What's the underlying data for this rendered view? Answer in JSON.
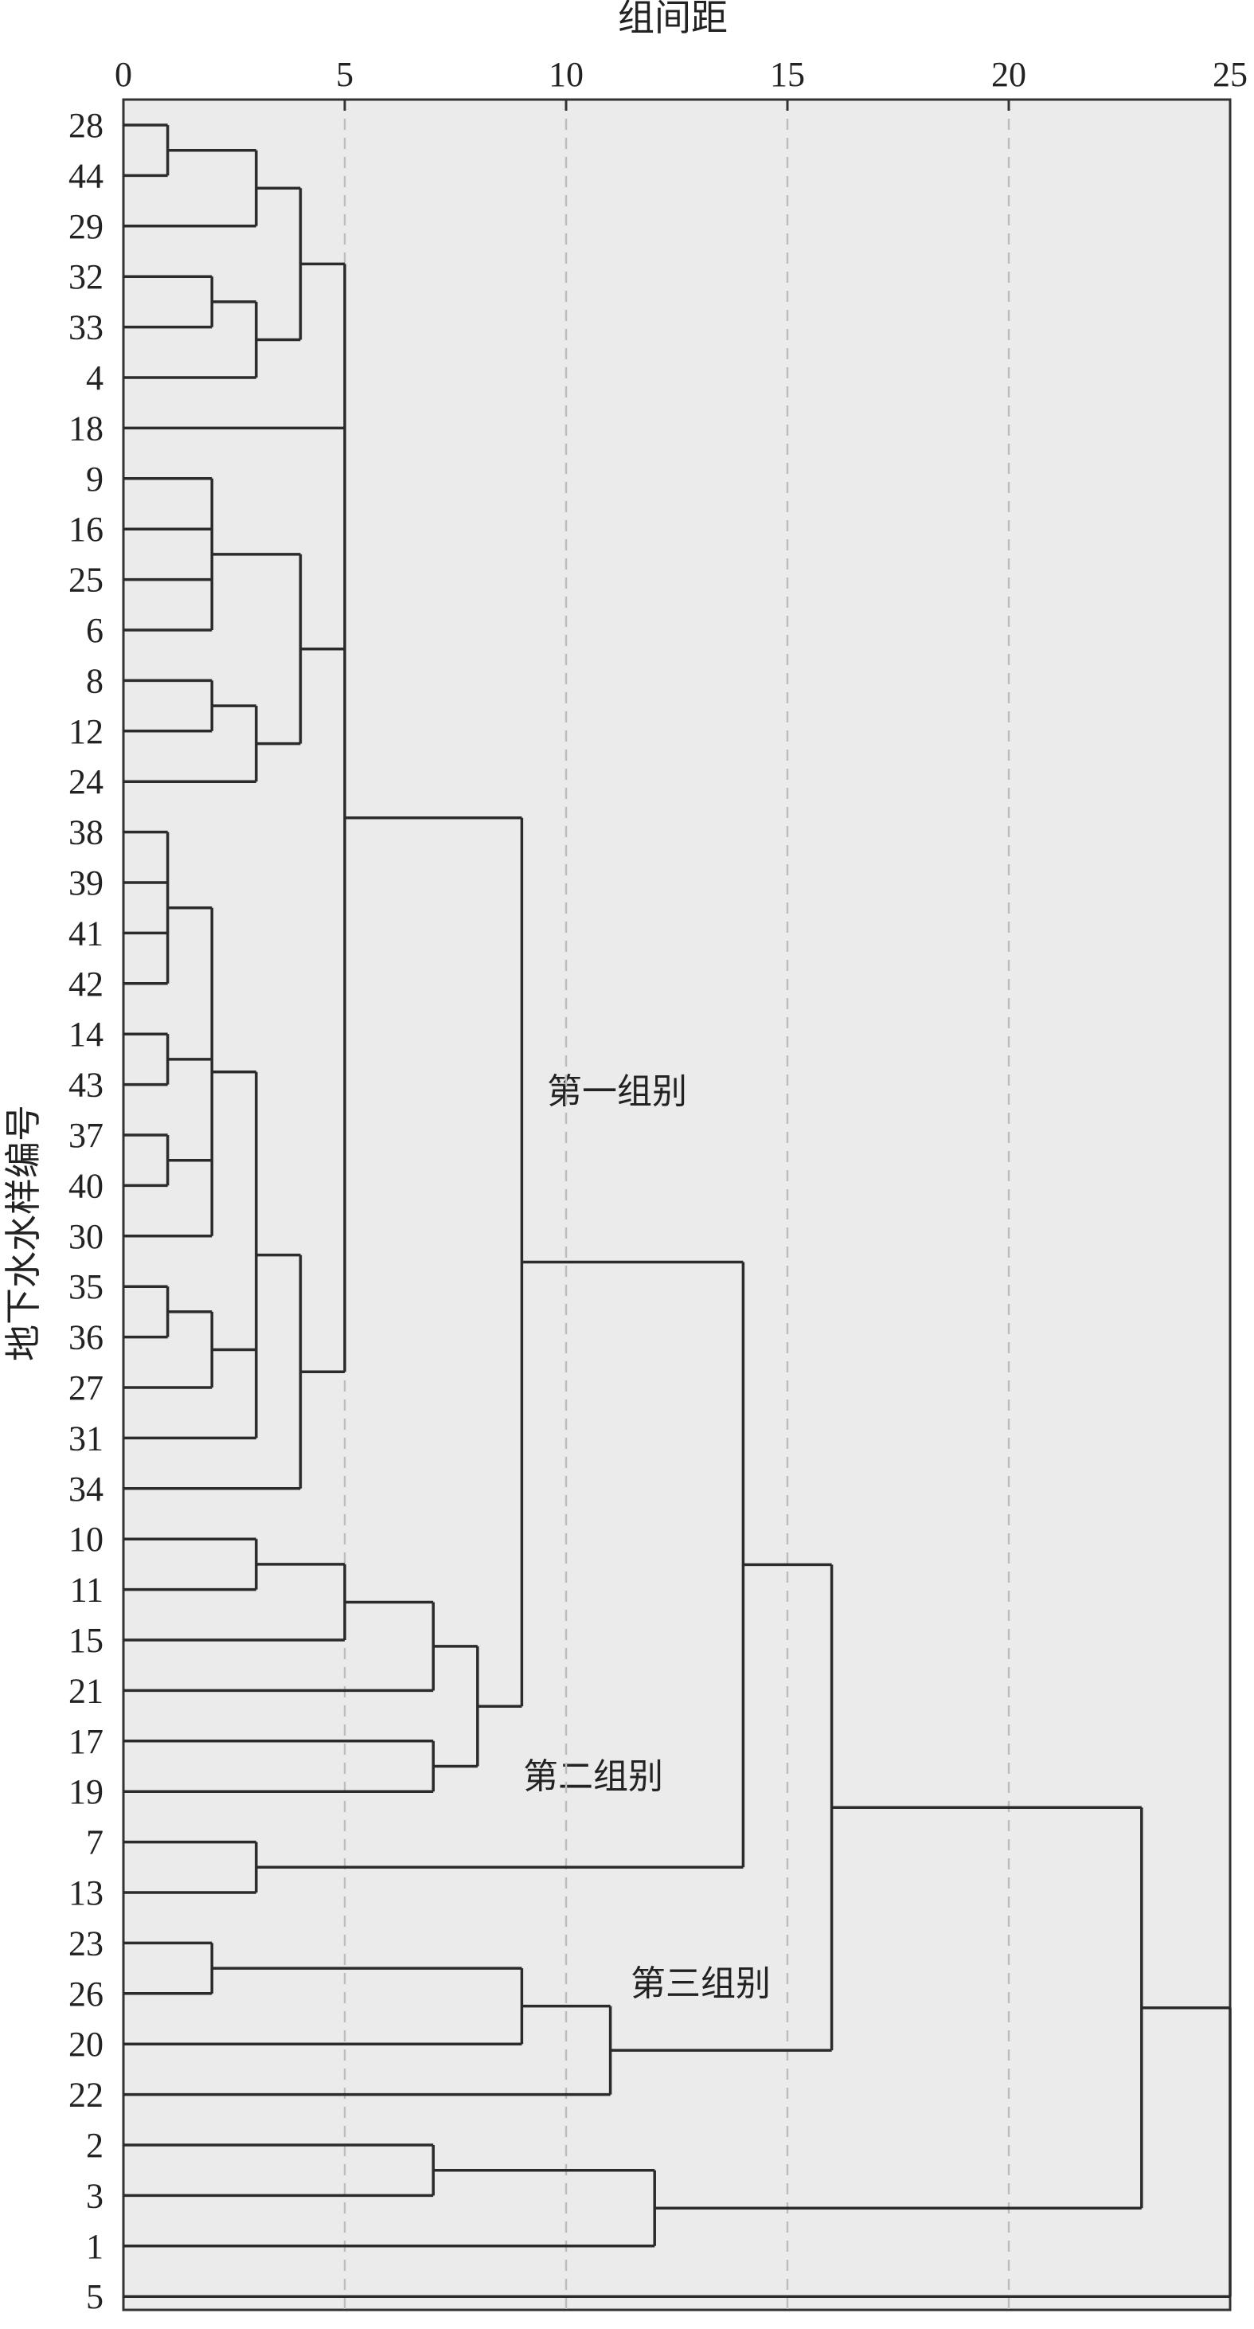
{
  "chart_data": {
    "type": "dendrogram",
    "title": "",
    "xlabel": "组间距",
    "ylabel": "地下水水样编号",
    "xlim": [
      0,
      25
    ],
    "xticks": [
      0,
      5,
      10,
      15,
      20,
      25
    ],
    "grid": "vertical dashed",
    "leaves": [
      "28",
      "44",
      "29",
      "32",
      "33",
      "4",
      "18",
      "9",
      "16",
      "25",
      "6",
      "8",
      "12",
      "24",
      "38",
      "39",
      "41",
      "42",
      "14",
      "43",
      "37",
      "40",
      "30",
      "35",
      "36",
      "27",
      "31",
      "34",
      "10",
      "11",
      "15",
      "21",
      "17",
      "19",
      "7",
      "13",
      "23",
      "26",
      "20",
      "22",
      "2",
      "3",
      "1",
      "5"
    ],
    "merges": [
      {
        "children": [
          "28",
          "44"
        ],
        "distance": 1
      },
      {
        "children": [
          "28-44",
          "29"
        ],
        "distance": 3
      },
      {
        "children": [
          "32",
          "33"
        ],
        "distance": 2
      },
      {
        "children": [
          "32-33",
          "4"
        ],
        "distance": 3
      },
      {
        "children": [
          "A",
          "B"
        ],
        "distance": 4
      },
      {
        "children": [
          "9",
          "16",
          "25",
          "6"
        ],
        "distance": 2
      },
      {
        "children": [
          "8",
          "12"
        ],
        "distance": 2
      },
      {
        "children": [
          "8-12",
          "24"
        ],
        "distance": 3
      },
      {
        "children": [
          "9-6",
          "8-24"
        ],
        "distance": 4
      },
      {
        "children": [
          "38",
          "39",
          "41",
          "42"
        ],
        "distance": 1
      },
      {
        "children": [
          "14",
          "43"
        ],
        "distance": 1
      },
      {
        "children": [
          "37",
          "40"
        ],
        "distance": 1
      },
      {
        "children": [
          "38-42",
          "14-43",
          "37-40",
          "30"
        ],
        "distance": 2
      },
      {
        "children": [
          "35",
          "36"
        ],
        "distance": 1
      },
      {
        "children": [
          "35-36",
          "27"
        ],
        "distance": 2
      },
      {
        "children": [
          "38-30",
          "35-27",
          "31"
        ],
        "distance": 3
      },
      {
        "children": [
          "38-31",
          "34"
        ],
        "distance": 4
      },
      {
        "children": [
          "28-4",
          "18",
          "9-24",
          "38-34"
        ],
        "distance": 5
      },
      {
        "children": [
          "10",
          "11"
        ],
        "distance": 3
      },
      {
        "children": [
          "10-11",
          "15"
        ],
        "distance": 5
      },
      {
        "children": [
          "10-15",
          "21"
        ],
        "distance": 7
      },
      {
        "children": [
          "17",
          "19"
        ],
        "distance": 7
      },
      {
        "children": [
          "10-21",
          "17-19"
        ],
        "distance": 8
      },
      {
        "children": [
          "28-34",
          "10-19"
        ],
        "distance": 9
      },
      {
        "children": [
          "7",
          "13"
        ],
        "distance": 3
      },
      {
        "children": [
          "28-19",
          "7-13"
        ],
        "distance": 14
      },
      {
        "children": [
          "23",
          "26"
        ],
        "distance": 2
      },
      {
        "children": [
          "23-26",
          "20"
        ],
        "distance": 9
      },
      {
        "children": [
          "23-20",
          "22"
        ],
        "distance": 11
      },
      {
        "children": [
          "28-13",
          "23-22"
        ],
        "distance": 16
      },
      {
        "children": [
          "2",
          "3"
        ],
        "distance": 7
      },
      {
        "children": [
          "2-3",
          "1"
        ],
        "distance": 12
      },
      {
        "children": [
          "28-22",
          "2-1"
        ],
        "distance": 23
      },
      {
        "children": [
          "28-1",
          "5"
        ],
        "distance": 25
      }
    ],
    "annotations": [
      "第一组别",
      "第二组别",
      "第三组别"
    ]
  }
}
